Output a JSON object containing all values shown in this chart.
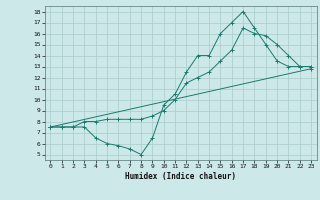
{
  "title": "",
  "xlabel": "Humidex (Indice chaleur)",
  "bg_color": "#cce8e8",
  "grid_color": "#aacccc",
  "line_color": "#1a7a6e",
  "xlim": [
    -0.5,
    23.5
  ],
  "ylim": [
    4.5,
    18.5
  ],
  "xticks": [
    0,
    1,
    2,
    3,
    4,
    5,
    6,
    7,
    8,
    9,
    10,
    11,
    12,
    13,
    14,
    15,
    16,
    17,
    18,
    19,
    20,
    21,
    22,
    23
  ],
  "yticks": [
    5,
    6,
    7,
    8,
    9,
    10,
    11,
    12,
    13,
    14,
    15,
    16,
    17,
    18
  ],
  "series": [
    {
      "x": [
        0,
        1,
        2,
        3,
        4,
        5,
        6,
        7,
        8,
        9,
        10,
        11,
        12,
        13,
        14,
        15,
        16,
        17,
        18,
        19,
        20,
        21,
        22,
        23
      ],
      "y": [
        7.5,
        7.5,
        7.5,
        7.5,
        6.5,
        6.0,
        5.8,
        5.5,
        5.0,
        6.5,
        9.5,
        10.5,
        12.5,
        14.0,
        14.0,
        16.0,
        17.0,
        18.0,
        16.5,
        15.0,
        13.5,
        13.0,
        13.0,
        13.0
      ]
    },
    {
      "x": [
        0,
        1,
        2,
        3,
        4,
        5,
        6,
        7,
        8,
        9,
        10,
        11,
        12,
        13,
        14,
        15,
        16,
        17,
        18,
        19,
        20,
        21,
        22,
        23
      ],
      "y": [
        7.5,
        7.5,
        7.5,
        8.0,
        8.0,
        8.2,
        8.2,
        8.2,
        8.2,
        8.5,
        9.0,
        10.0,
        11.5,
        12.0,
        12.5,
        13.5,
        14.5,
        16.5,
        16.0,
        15.8,
        15.0,
        14.0,
        13.0,
        13.0
      ]
    },
    {
      "x": [
        0,
        23
      ],
      "y": [
        7.5,
        12.8
      ]
    }
  ]
}
